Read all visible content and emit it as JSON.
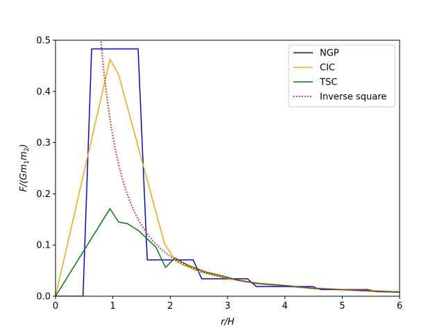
{
  "chart_data": {
    "type": "line",
    "title": "",
    "xlabel": "r/H",
    "ylabel": "F/(Gm1m2)",
    "xlim": [
      0,
      6
    ],
    "ylim": [
      0,
      0.5
    ],
    "xticks": [
      0,
      1,
      2,
      3,
      4,
      5,
      6
    ],
    "yticks": [
      0.0,
      0.1,
      0.2,
      0.3,
      0.4,
      0.5
    ],
    "xtick_labels": [
      "0",
      "1",
      "2",
      "3",
      "4",
      "5",
      "6"
    ],
    "ytick_labels": [
      "0.0",
      "0.1",
      "0.2",
      "0.3",
      "0.4",
      "0.5"
    ],
    "grid": false,
    "legend_position": "top-right",
    "series": [
      {
        "name": "NGP",
        "color": "#0000ff",
        "style": "solid",
        "x": [
          0,
          0.48,
          0.63,
          1.44,
          1.6,
          2.4,
          2.55,
          3.35,
          3.5,
          4.48,
          4.63,
          5.44,
          5.6,
          6.0
        ],
        "y": [
          0,
          0,
          0.483,
          0.483,
          0.071,
          0.071,
          0.034,
          0.034,
          0.019,
          0.019,
          0.013,
          0.013,
          0.009,
          0.008
        ]
      },
      {
        "name": "CIC",
        "color": "#ffa500",
        "style": "solid",
        "x": [
          0,
          0.95,
          1.1,
          1.9,
          2.1,
          2.5,
          3.0,
          3.5,
          4.0,
          4.5,
          5.0,
          5.5,
          6.0
        ],
        "y": [
          0,
          0.463,
          0.433,
          0.103,
          0.068,
          0.048,
          0.035,
          0.026,
          0.021,
          0.016,
          0.013,
          0.011,
          0.008
        ]
      },
      {
        "name": "TSC",
        "color": "#008000",
        "style": "solid",
        "x": [
          0,
          0.95,
          1.1,
          1.25,
          1.45,
          1.75,
          1.92,
          2.08,
          2.3,
          2.6,
          2.9,
          3.2,
          3.5,
          4.0,
          4.5,
          5.0,
          5.5,
          6.0
        ],
        "y": [
          0,
          0.171,
          0.145,
          0.142,
          0.128,
          0.096,
          0.056,
          0.075,
          0.061,
          0.048,
          0.04,
          0.031,
          0.025,
          0.021,
          0.015,
          0.013,
          0.01,
          0.008
        ]
      },
      {
        "name": "Inverse square",
        "color": "#ff0000",
        "style": "dotted",
        "function": "1/(3.2 r^2)",
        "x_start": 0.78,
        "x_end": 6.0
      }
    ]
  }
}
